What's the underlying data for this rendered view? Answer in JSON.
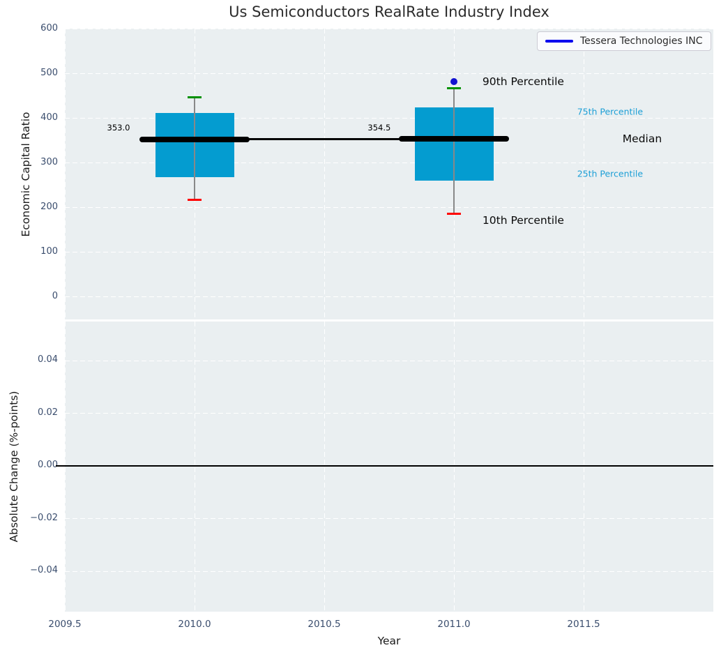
{
  "figure": {
    "title": "Us Semiconductors RealRate Industry Index",
    "legend": {
      "label": "Tessera Technologies INC"
    },
    "colors": {
      "box_fill": "#049cd0",
      "percentile_90_cap": "#009100",
      "percentile_10_cap": "#ff0000",
      "whisker": "#888888",
      "median_line": "#000000",
      "median_trend": "#000000",
      "company_point": "#1212d0",
      "legend_line": "#0000ee",
      "cyan_label": "#1c9fd6",
      "axes_background": "#eaeff1",
      "grid": "#ffffff",
      "tick_label": "#3a4d6d",
      "zero_line": "#000000"
    }
  },
  "chart_data": [
    {
      "type": "boxplot",
      "title": "Us Semiconductors RealRate Industry Index",
      "ylabel": "Economic Capital Ratio",
      "xlabel": "",
      "xlim": [
        2009.5,
        2012.0
      ],
      "ylim": [
        -50,
        601
      ],
      "yticks": [
        600,
        500,
        400,
        300,
        200,
        100,
        0
      ],
      "ytick_labels": [
        "600",
        "500",
        "400",
        "300",
        "200",
        "100",
        "0"
      ],
      "xgrid": [
        2009.5,
        2010.0,
        2010.5,
        2011.0,
        2011.5
      ],
      "grid": "white-dashed",
      "legend": {
        "label": "Tessera Technologies INC",
        "position": "upper-right",
        "marker": "line"
      },
      "boxes": [
        {
          "x": 2010,
          "p10": 217,
          "q1": 269,
          "median": 353.0,
          "q3": 412,
          "p90": 448
        },
        {
          "x": 2011,
          "p10": 186,
          "q1": 261,
          "median": 354.5,
          "q3": 425,
          "p90": 468
        }
      ],
      "median_trend": {
        "x": [
          2010,
          2011
        ],
        "y": [
          353.0,
          354.5
        ]
      },
      "company_series": {
        "name": "Tessera Technologies INC",
        "points": [
          {
            "x": 2011,
            "y": 483
          }
        ]
      },
      "annotations": [
        {
          "text": "353.0",
          "x": 2009.707,
          "y": 380,
          "size": 11.5,
          "color": "#000000",
          "anchor": "center"
        },
        {
          "text": "354.5",
          "x": 2010.712,
          "y": 380,
          "size": 11.5,
          "color": "#000000",
          "anchor": "center"
        },
        {
          "text": "90th Percentile",
          "x": 2011.11,
          "y": 483,
          "size": 15.5,
          "color": "#0a0a0a",
          "anchor": "left"
        },
        {
          "text": "10th Percentile",
          "x": 2011.11,
          "y": 171,
          "size": 15.5,
          "color": "#0a0a0a",
          "anchor": "left"
        },
        {
          "text": "75th Percentile",
          "x": 2011.475,
          "y": 415,
          "size": 12.5,
          "color": "#1c9fd6",
          "anchor": "left"
        },
        {
          "text": "Median",
          "x": 2011.65,
          "y": 354,
          "size": 15.5,
          "color": "#0a0a0a",
          "anchor": "left"
        },
        {
          "text": "25th Percentile",
          "x": 2011.475,
          "y": 276,
          "size": 12.5,
          "color": "#1c9fd6",
          "anchor": "left"
        }
      ]
    },
    {
      "type": "line",
      "ylabel": "Absolute Change (%-points)",
      "xlabel": "Year",
      "xlim": [
        2009.5,
        2012.0
      ],
      "ylim": [
        -0.0553,
        0.0549
      ],
      "yticks": [
        0.04,
        0.02,
        0.0,
        -0.02,
        -0.04
      ],
      "ytick_labels": [
        "0.04",
        "0.02",
        "0.00",
        "−0.02",
        "−0.04"
      ],
      "xticks": [
        2009.5,
        2010.0,
        2010.5,
        2011.0,
        2011.5
      ],
      "xtick_labels": [
        "2009.5",
        "2010.0",
        "2010.5",
        "2011.0",
        "2011.5"
      ],
      "xgrid": [
        2009.5,
        2010.0,
        2010.5,
        2011.0,
        2011.5
      ],
      "grid": "white-dashed",
      "zero_line": 0.0,
      "series": []
    }
  ]
}
